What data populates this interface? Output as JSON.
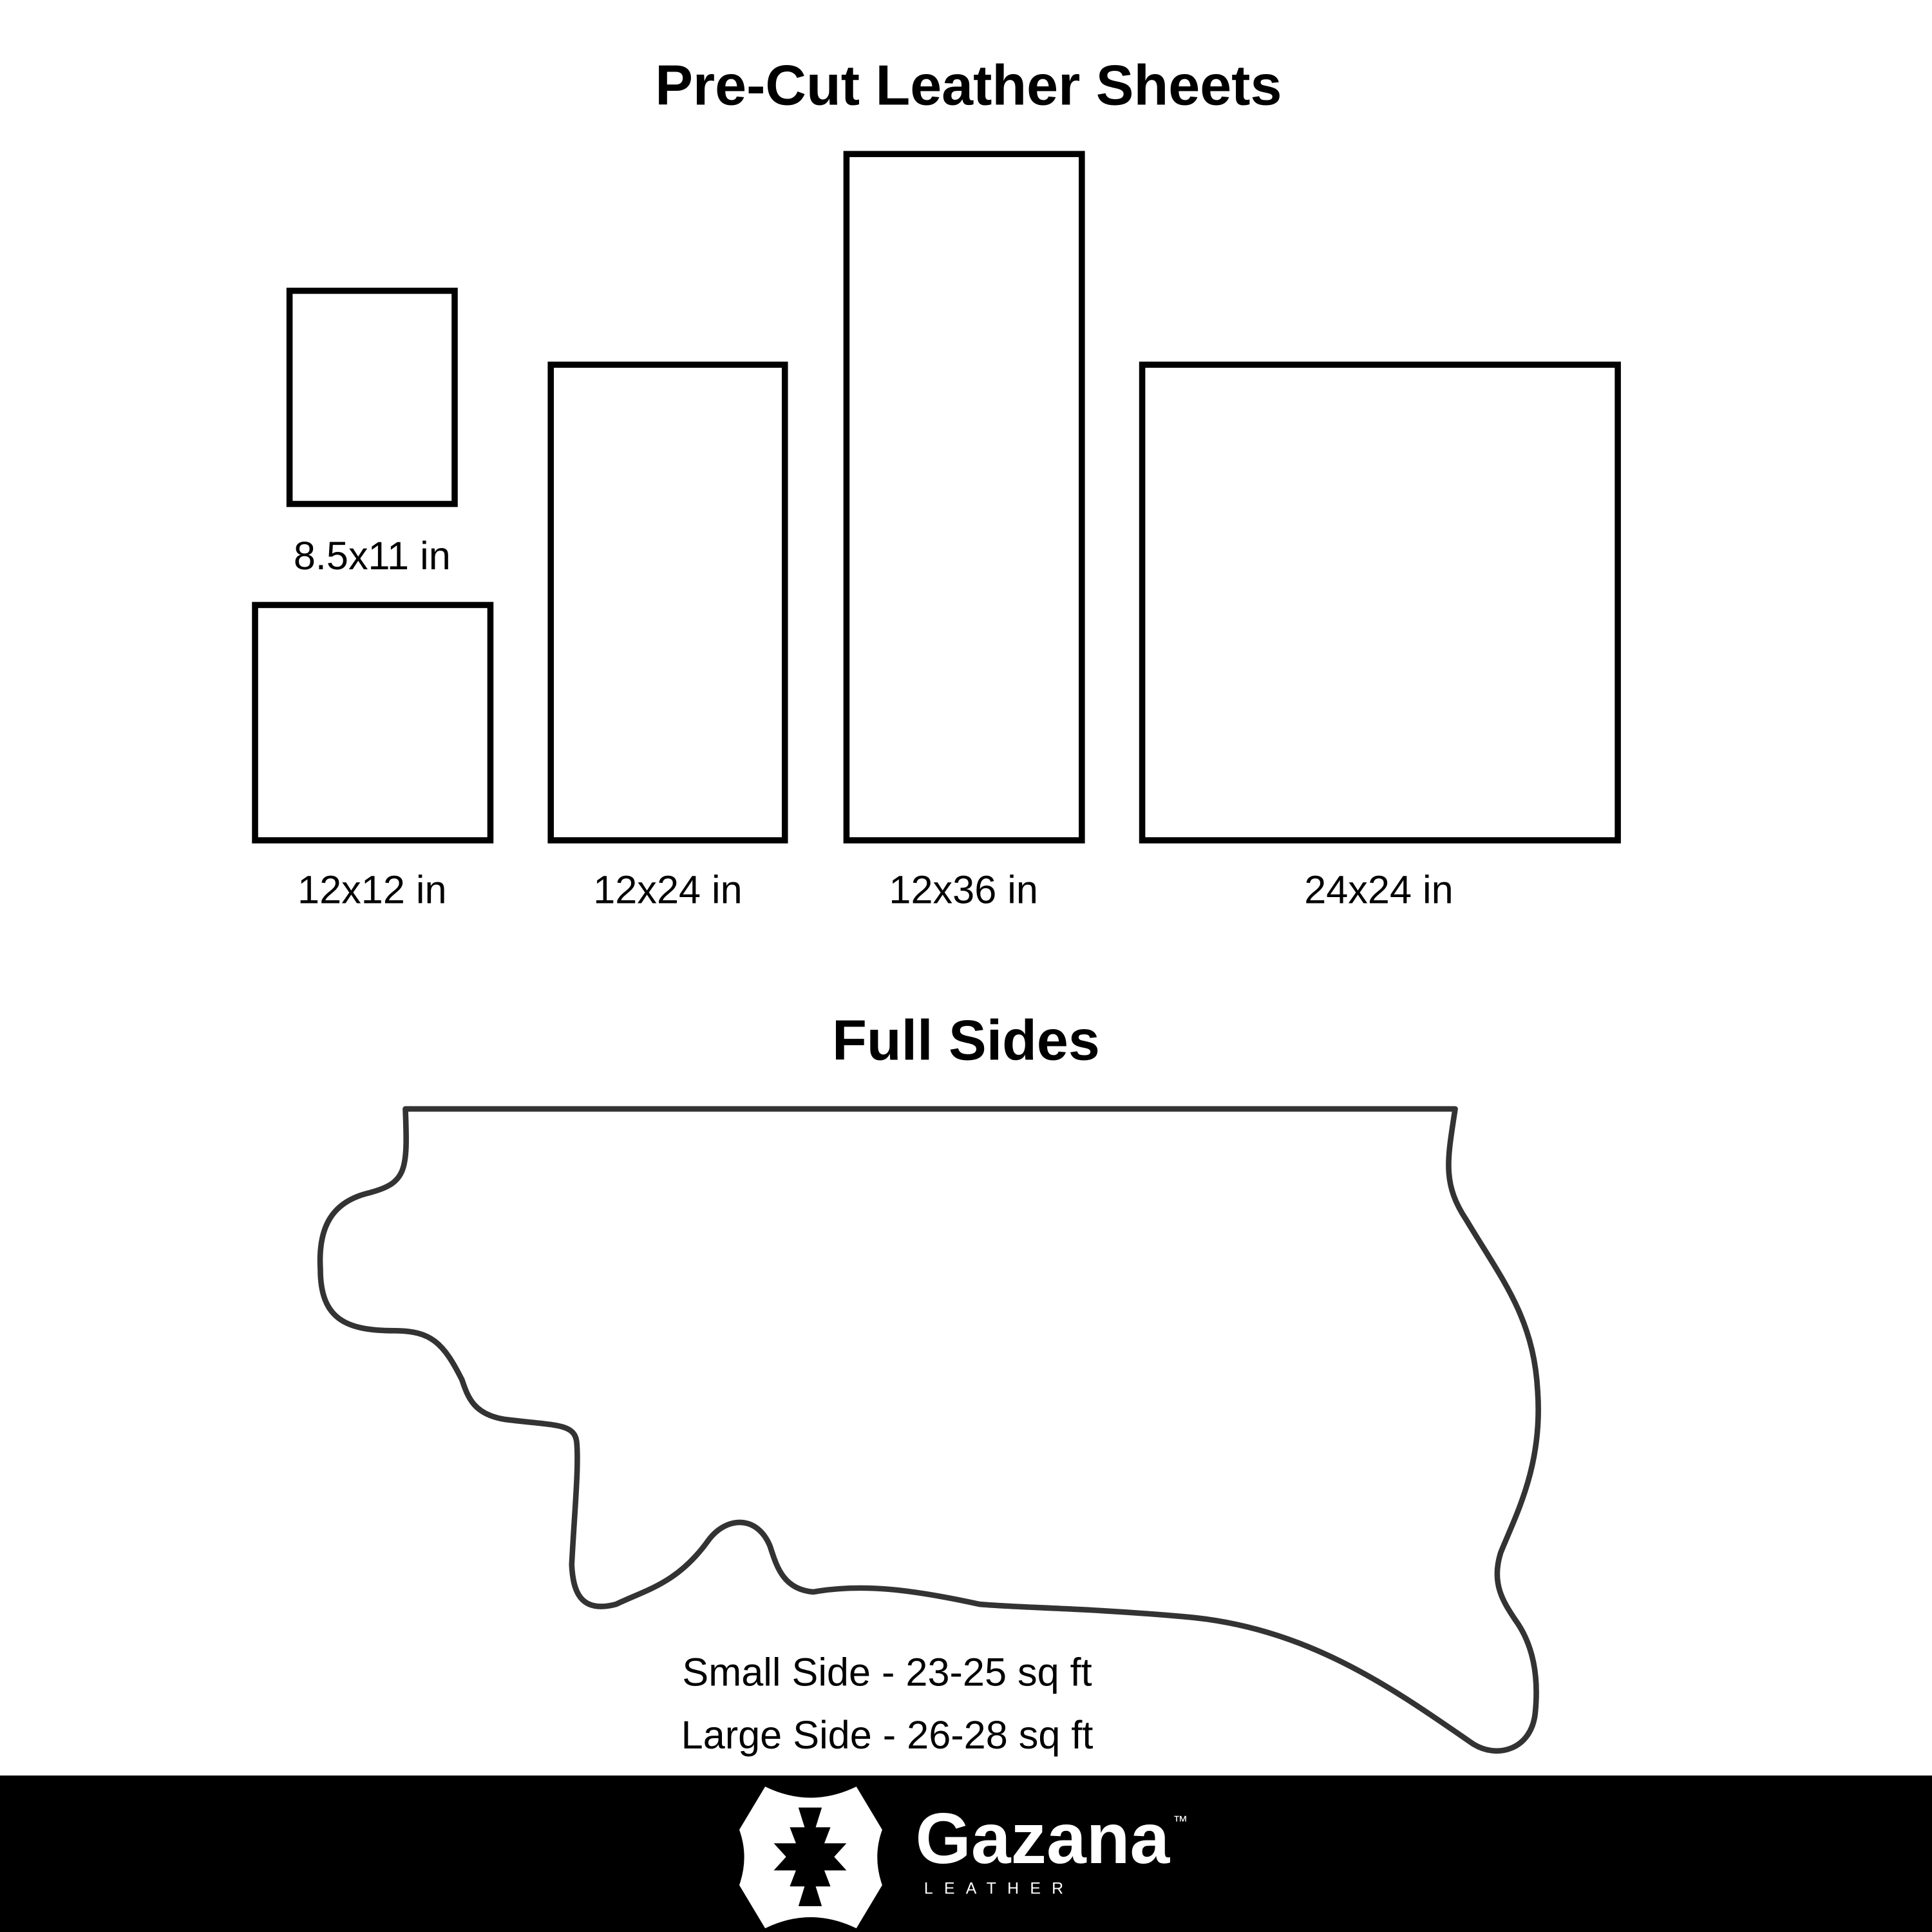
{
  "precut": {
    "title": "Pre-Cut Leather Sheets",
    "sheets": [
      {
        "label": "8.5x11 in"
      },
      {
        "label": "12x12 in"
      },
      {
        "label": "12x24 in"
      },
      {
        "label": "12x36 in"
      },
      {
        "label": "24x24 in"
      }
    ]
  },
  "full_sides": {
    "title": "Full Sides",
    "small": "Small Side - 23-25 sq ft",
    "large": "Large Side - 26-28 sq ft"
  },
  "footer": {
    "brand": "Gazana",
    "tm": "™",
    "sub": "LEATHER",
    "background": "#000000"
  }
}
